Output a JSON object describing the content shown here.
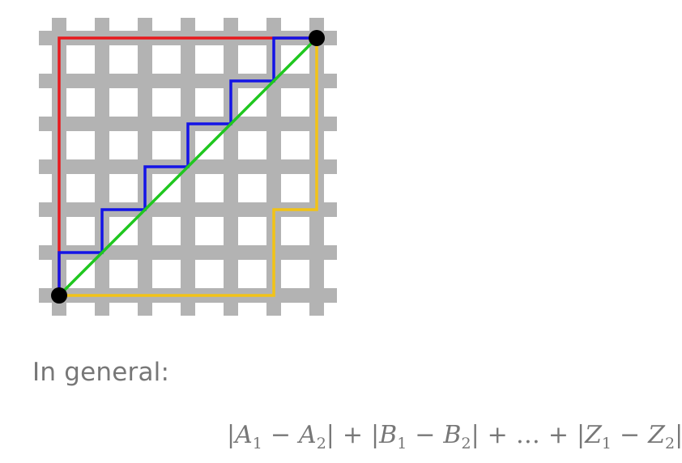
{
  "caption": "In general:",
  "formula": {
    "terms": [
      {
        "bar_left": "|",
        "a": "A",
        "a_sub": "1",
        "minus": "−",
        "b": "A",
        "b_sub": "2",
        "bar_right": "|"
      },
      {
        "bar_left": "|",
        "a": "B",
        "a_sub": "1",
        "minus": "−",
        "b": "B",
        "b_sub": "2",
        "bar_right": "|"
      },
      {
        "bar_left": "|",
        "a": "Z",
        "a_sub": "1",
        "minus": "−",
        "b": "Z",
        "b_sub": "2",
        "bar_right": "|"
      }
    ],
    "plus": "+",
    "ellipsis": "…"
  },
  "colors": {
    "grid": "#b3b3b3",
    "red_path": "#e8191d",
    "blue_path": "#1414e6",
    "green_path": "#1fc71f",
    "yellow_path": "#f2c316",
    "endpoint": "#000000",
    "text": "#777777"
  }
}
